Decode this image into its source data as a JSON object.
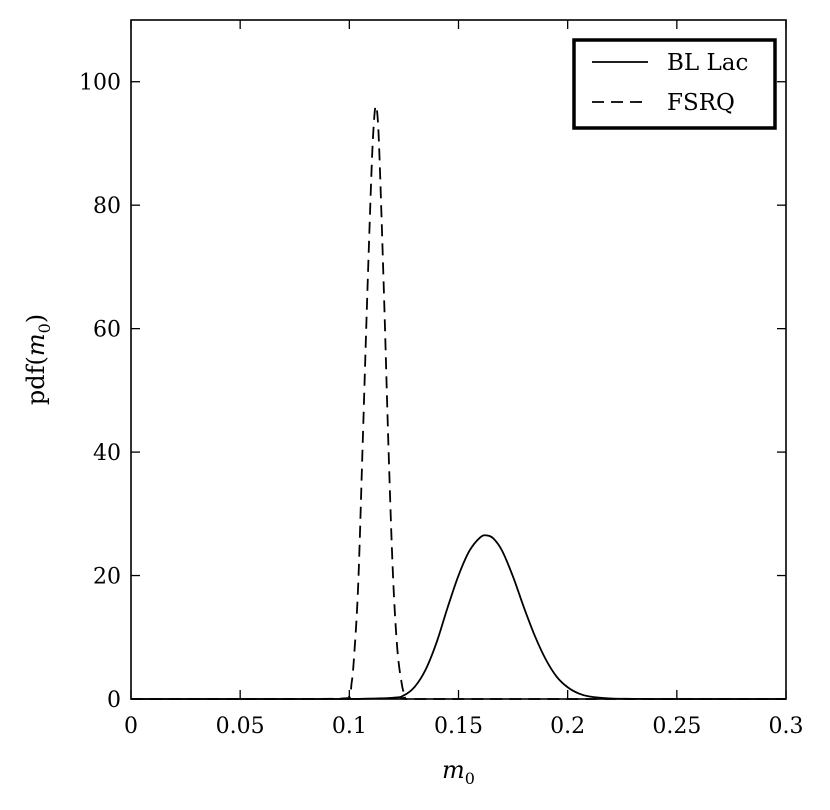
{
  "chart_data": {
    "type": "line",
    "title": "",
    "xlabel_base": "m",
    "xlabel_sub": "0",
    "ylabel_prefix": "pdf(",
    "ylabel_var": "m",
    "ylabel_sub": "0",
    "ylabel_suffix": ")",
    "xlim": [
      0,
      0.3
    ],
    "ylim": [
      0,
      110
    ],
    "xticks": [
      0,
      0.05,
      0.1,
      0.15,
      0.2,
      0.25,
      0.3
    ],
    "xtick_labels": [
      "0",
      "0.05",
      "0.1",
      "0.15",
      "0.2",
      "0.25",
      "0.3"
    ],
    "yticks": [
      0,
      20,
      40,
      60,
      80,
      100
    ],
    "ytick_labels": [
      "0",
      "20",
      "40",
      "60",
      "80",
      "100"
    ],
    "grid": false,
    "legend_position": "top-right",
    "series": [
      {
        "name": "BL Lac",
        "style": "solid",
        "color": "#000000",
        "x": [
          0.0,
          0.05,
          0.1,
          0.12,
          0.125,
          0.13,
          0.135,
          0.14,
          0.145,
          0.15,
          0.155,
          0.16,
          0.163,
          0.166,
          0.17,
          0.175,
          0.18,
          0.185,
          0.19,
          0.195,
          0.2,
          0.205,
          0.21,
          0.22,
          0.23,
          0.24,
          0.25,
          0.3
        ],
        "y": [
          0.0,
          0.0,
          0.0,
          0.2,
          0.6,
          2.0,
          4.8,
          9.2,
          14.8,
          20.0,
          24.0,
          26.2,
          26.5,
          26.0,
          24.0,
          19.8,
          14.8,
          10.2,
          6.4,
          3.6,
          1.9,
          0.9,
          0.4,
          0.08,
          0.02,
          0.0,
          0.0,
          0.0
        ]
      },
      {
        "name": "FSRQ",
        "style": "dashed",
        "color": "#000000",
        "x": [
          0.0,
          0.05,
          0.095,
          0.1,
          0.101,
          0.102,
          0.104,
          0.106,
          0.108,
          0.11,
          0.111,
          0.112,
          0.113,
          0.114,
          0.116,
          0.118,
          0.12,
          0.122,
          0.124,
          0.125,
          0.126,
          0.13,
          0.2,
          0.3
        ],
        "y": [
          0.0,
          0.0,
          0.05,
          0.6,
          2.5,
          6.0,
          18.0,
          40.0,
          63.0,
          84.0,
          92.0,
          96.0,
          94.0,
          86.0,
          64.0,
          40.0,
          20.0,
          8.0,
          2.5,
          1.0,
          0.3,
          0.0,
          0.0,
          0.0
        ]
      }
    ]
  }
}
